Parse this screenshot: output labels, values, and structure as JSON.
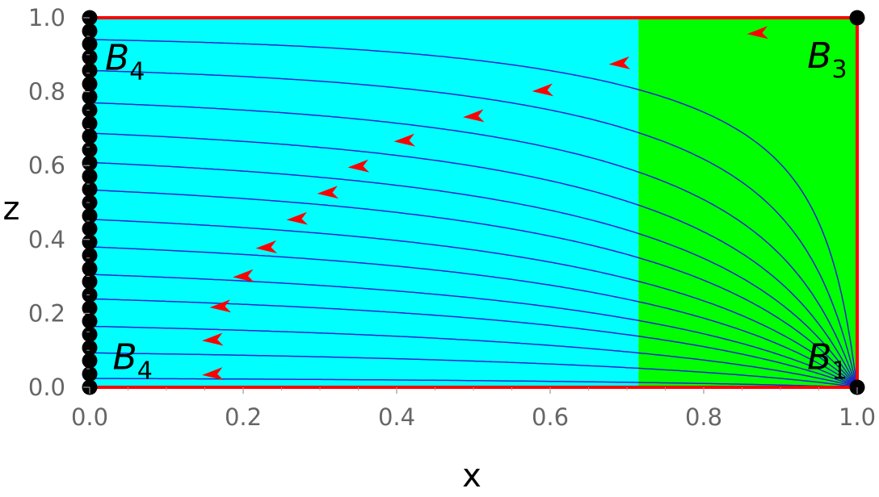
{
  "chart_data": {
    "type": "streamplot",
    "xlabel": "x",
    "ylabel": "z",
    "xlim": [
      0,
      1
    ],
    "ylim": [
      0,
      1
    ],
    "x_ticks": [
      "0.0",
      "0.2",
      "0.4",
      "0.6",
      "0.8",
      "1.0"
    ],
    "y_ticks": [
      "0.0",
      "0.2",
      "0.4",
      "0.6",
      "0.8",
      "1.0"
    ],
    "regions": [
      {
        "x_from": 0.0,
        "x_to": 0.715,
        "color": "#00ffff"
      },
      {
        "x_from": 0.715,
        "x_to": 1.0,
        "color": "#00ff00"
      }
    ],
    "boundary_color": "#ff0000",
    "stream_color": "#2222cc",
    "arrow_color": "#ff0000",
    "streamlines": [
      {
        "z_left": 0.035,
        "arrow": [
          0.16,
          0.035
        ]
      },
      {
        "z_left": 0.133,
        "arrow": [
          0.16,
          0.128
        ]
      },
      {
        "z_left": 0.23,
        "arrow": [
          0.17,
          0.218
        ]
      },
      {
        "z_left": 0.325,
        "arrow": [
          0.2,
          0.3
        ]
      },
      {
        "z_left": 0.405,
        "arrow": [
          0.23,
          0.378
        ]
      },
      {
        "z_left": 0.49,
        "arrow": [
          0.27,
          0.455
        ]
      },
      {
        "z_left": 0.57,
        "arrow": [
          0.31,
          0.526
        ]
      },
      {
        "z_left": 0.65,
        "arrow": [
          0.35,
          0.597
        ]
      },
      {
        "z_left": 0.72,
        "arrow": [
          0.41,
          0.667
        ]
      },
      {
        "z_left": 0.79,
        "arrow": [
          0.5,
          0.733
        ]
      },
      {
        "z_left": 0.858,
        "arrow": [
          0.59,
          0.803
        ]
      },
      {
        "z_left": 0.925,
        "arrow": [
          0.69,
          0.876
        ]
      },
      {
        "z_left": 0.985,
        "arrow": [
          0.87,
          0.958
        ]
      }
    ],
    "fixed_points": [
      {
        "x": 1.0,
        "z": 1.0
      },
      {
        "x": 1.0,
        "z": 0.0
      }
    ],
    "fixed_line": {
      "x": 0.0,
      "z_values": [
        0.0,
        0.036,
        0.072,
        0.107,
        0.143,
        0.179,
        0.214,
        0.25,
        0.286,
        0.321,
        0.357,
        0.393,
        0.429,
        0.464,
        0.5,
        0.536,
        0.571,
        0.607,
        0.643,
        0.679,
        0.714,
        0.75,
        0.786,
        0.821,
        0.857,
        0.893,
        0.929,
        0.964,
        1.0
      ]
    },
    "annotations": [
      {
        "base": "B",
        "sub": "4",
        "x": 0.02,
        "z": 0.89
      },
      {
        "base": "B",
        "sub": "4",
        "x": 0.03,
        "z": 0.08
      },
      {
        "base": "B",
        "sub": "3",
        "x": 0.935,
        "z": 0.895
      },
      {
        "base": "B",
        "sub": "1",
        "x": 0.935,
        "z": 0.08
      }
    ]
  }
}
